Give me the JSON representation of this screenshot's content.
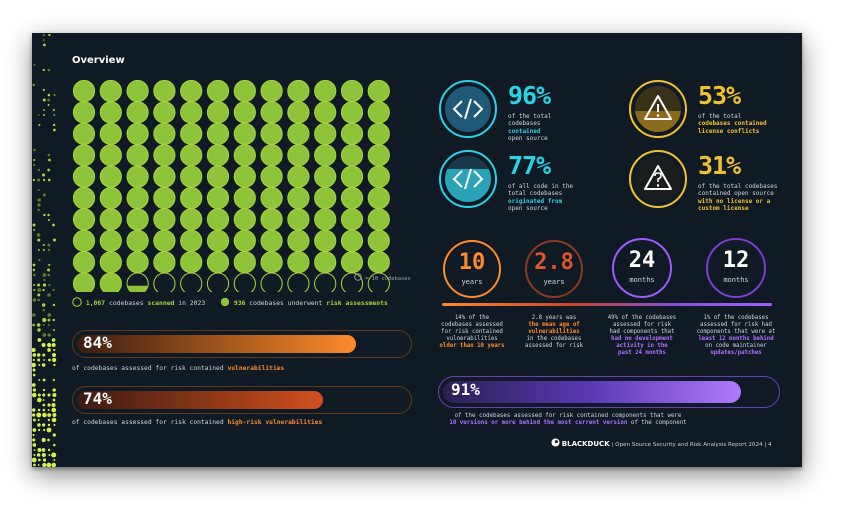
{
  "title": "Overview",
  "grid": {
    "total_dots": 120,
    "full_dots": 110,
    "partial_dots": 1,
    "empty_dots": 9,
    "partial_fill": 0.4
  },
  "legend": {
    "note": "= 10 codebases",
    "scanned": {
      "count": "1,067",
      "pre": "codebases",
      "hl": "scanned",
      "post": "in 2023"
    },
    "risk": {
      "count": "936",
      "pre": "codebases underwent",
      "hl": "risk assessments"
    }
  },
  "bars": [
    {
      "pct": "84%",
      "fraction": 0.84,
      "caption_pre": "of codebases assessed for risk contained",
      "caption_hl": "vulnerabilities",
      "color_from": "#3a1c10",
      "color_to": "#ff8a2a"
    },
    {
      "pct": "74%",
      "fraction": 0.74,
      "caption_pre": "of codebases assessed for risk contained",
      "caption_hl": "high-risk vulnerabilities",
      "color_from": "#3a1a12",
      "color_to": "#d4501e"
    }
  ],
  "stats": [
    {
      "pct": "96%",
      "color": "#29d3e4",
      "icon": "code-icon",
      "lines": [
        "of the total",
        "codebases",
        "contained",
        "open source"
      ],
      "hl": [
        2
      ]
    },
    {
      "pct": "77%",
      "color": "#29d3e4",
      "icon": "code-icon",
      "lines": [
        "of all code in the",
        "total codebases",
        "originated from",
        "open source"
      ],
      "hl": [
        2
      ]
    },
    {
      "pct": "53%",
      "color": "#f2c12e",
      "icon": "warning-icon",
      "lines": [
        "of the total",
        "codebases contained",
        "license conflicts"
      ],
      "hl": [
        1,
        2
      ]
    },
    {
      "pct": "31%",
      "color": "#f2c12e",
      "icon": "question-icon",
      "lines": [
        "of the total codebases",
        "contained open source",
        "with no license or a",
        "custom license"
      ],
      "hl": [
        2,
        3
      ]
    }
  ],
  "rings": [
    {
      "num": "10",
      "unit": "years",
      "color": "#ff8a2a"
    },
    {
      "num": "2.8",
      "unit": "years",
      "color": "#e0542a"
    },
    {
      "num": "24",
      "unit": "months",
      "color": "#c690ff"
    },
    {
      "num": "12",
      "unit": "months",
      "color": "#b580ff"
    }
  ],
  "descriptions": [
    {
      "lines": [
        "14% of the",
        "codebases assessed",
        "for risk contained",
        "vulnerabilities",
        "older than 10 years"
      ],
      "hl": [
        4
      ],
      "tone": "o"
    },
    {
      "lines": [
        "2.8 years was",
        "the mean age of",
        "vulnerabilities",
        "in the codebases",
        "assessed for risk"
      ],
      "hl": [
        1,
        2
      ],
      "tone": "o"
    },
    {
      "lines": [
        "49% of the codebases",
        "assessed for risk",
        "had components that",
        "had no development",
        "activity in the",
        "past 24 months"
      ],
      "hl": [
        3,
        4,
        5
      ],
      "tone": "p"
    },
    {
      "lines": [
        "1% of the codebases",
        "assessed for risk had",
        "components that were at",
        "least 12 months behind",
        "on code maintainer",
        "updates/patches"
      ],
      "hl": [
        3,
        5
      ],
      "tone": "p"
    }
  ],
  "purple_bar": {
    "pct": "91%",
    "fraction": 0.91,
    "line1": "of the codebases assessed for risk contained components that were",
    "line2_hl": "10 versions or more behind the most current version",
    "line2_post": "of the component"
  },
  "footer": {
    "brand": "BLACKDUCK",
    "text": "| Open Source Security and Risk Analysis Report 2024 | 4"
  }
}
